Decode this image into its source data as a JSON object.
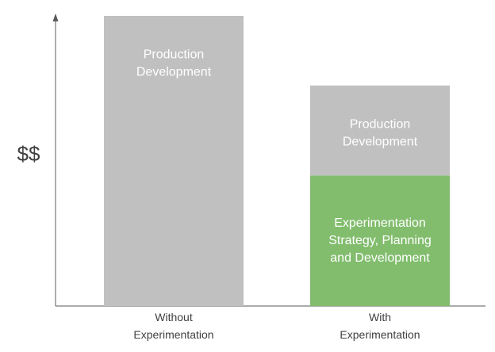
{
  "chart_data": {
    "type": "bar",
    "stacked": true,
    "title": "",
    "xlabel": "",
    "ylabel": "$$",
    "ylim": [
      0,
      100
    ],
    "grid": false,
    "legend": "none",
    "categories": [
      "Without\nExperimentation",
      "With\nExperimentation"
    ],
    "series": [
      {
        "label": "Experimentation\nStrategy, Planning\nand Development",
        "color": "#82bd6e",
        "values": [
          0,
          45
        ]
      },
      {
        "label": "Production\nDevelopment",
        "color": "#c0c0c0",
        "values": [
          100,
          31
        ]
      }
    ]
  },
  "colors": {
    "axis": "#595959",
    "segment_text": "#ffffff",
    "category_text": "#404040"
  }
}
